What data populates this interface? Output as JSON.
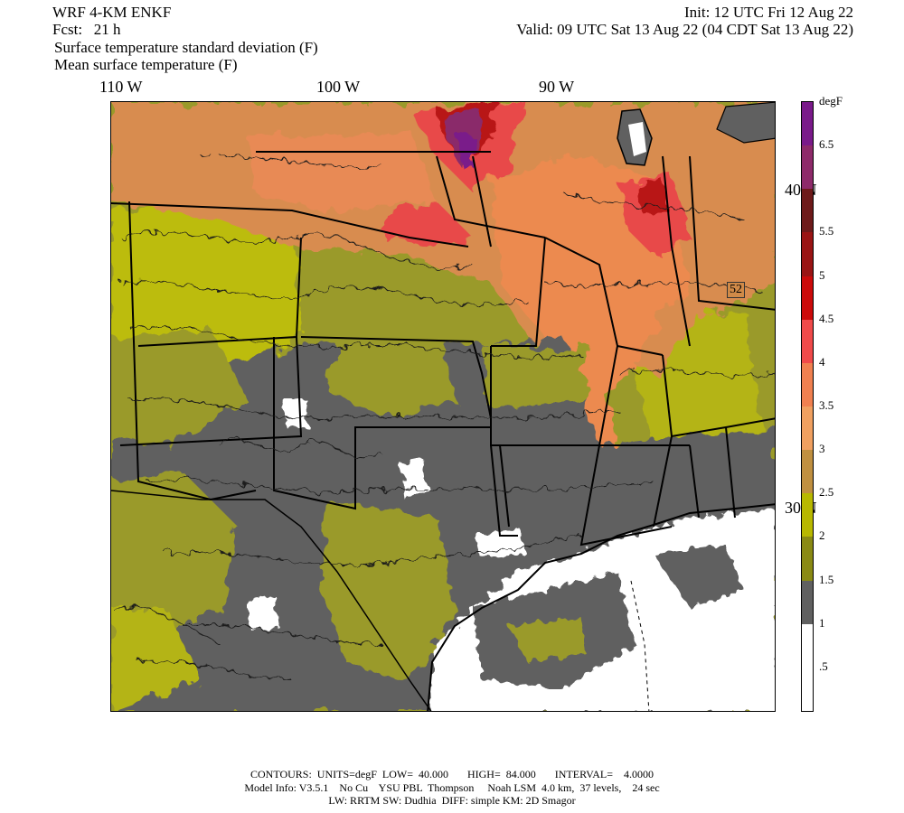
{
  "header": {
    "model": "WRF 4-KM ENKF",
    "fcst": "Fcst:   21 h",
    "init": "Init: 12 UTC Fri 12 Aug 22",
    "valid": "Valid: 09 UTC Sat 13 Aug 22 (04 CDT Sat 13 Aug 22)",
    "field1": "Surface temperature standard deviation (F)",
    "field2": "Mean surface temperature (F)"
  },
  "lon_labels": [
    "110 W",
    "100 W",
    "90 W"
  ],
  "lat_labels": [
    "40 N",
    "30 N"
  ],
  "station_badge": "52",
  "colorbar": {
    "unit": "degF",
    "labels": [
      "6.5",
      "5.5",
      "5",
      "4.5",
      "4",
      "3.5",
      "3",
      "2.5",
      "2",
      "1.5",
      "1",
      ".5"
    ],
    "colors": [
      "#7a1a8a",
      "#8e2a6a",
      "#6e1a1a",
      "#9a1414",
      "#cc0a0a",
      "#f04a4a",
      "#f08050",
      "#f0a060",
      "#c09040",
      "#b8b800",
      "#8a8a14",
      "#606060",
      "#ffffff",
      "#ffffff"
    ]
  },
  "footer": {
    "line1": "CONTOURS:  UNITS=degF  LOW=  40.000       HIGH=  84.000       INTERVAL=    4.0000",
    "line2": "Model Info: V3.5.1    No Cu    YSU PBL  Thompson     Noah LSM  4.0 km,  37 levels,    24 sec",
    "line3": "LW: RRTM SW: Dudhia  DIFF: simple KM: 2D Smagor"
  }
}
